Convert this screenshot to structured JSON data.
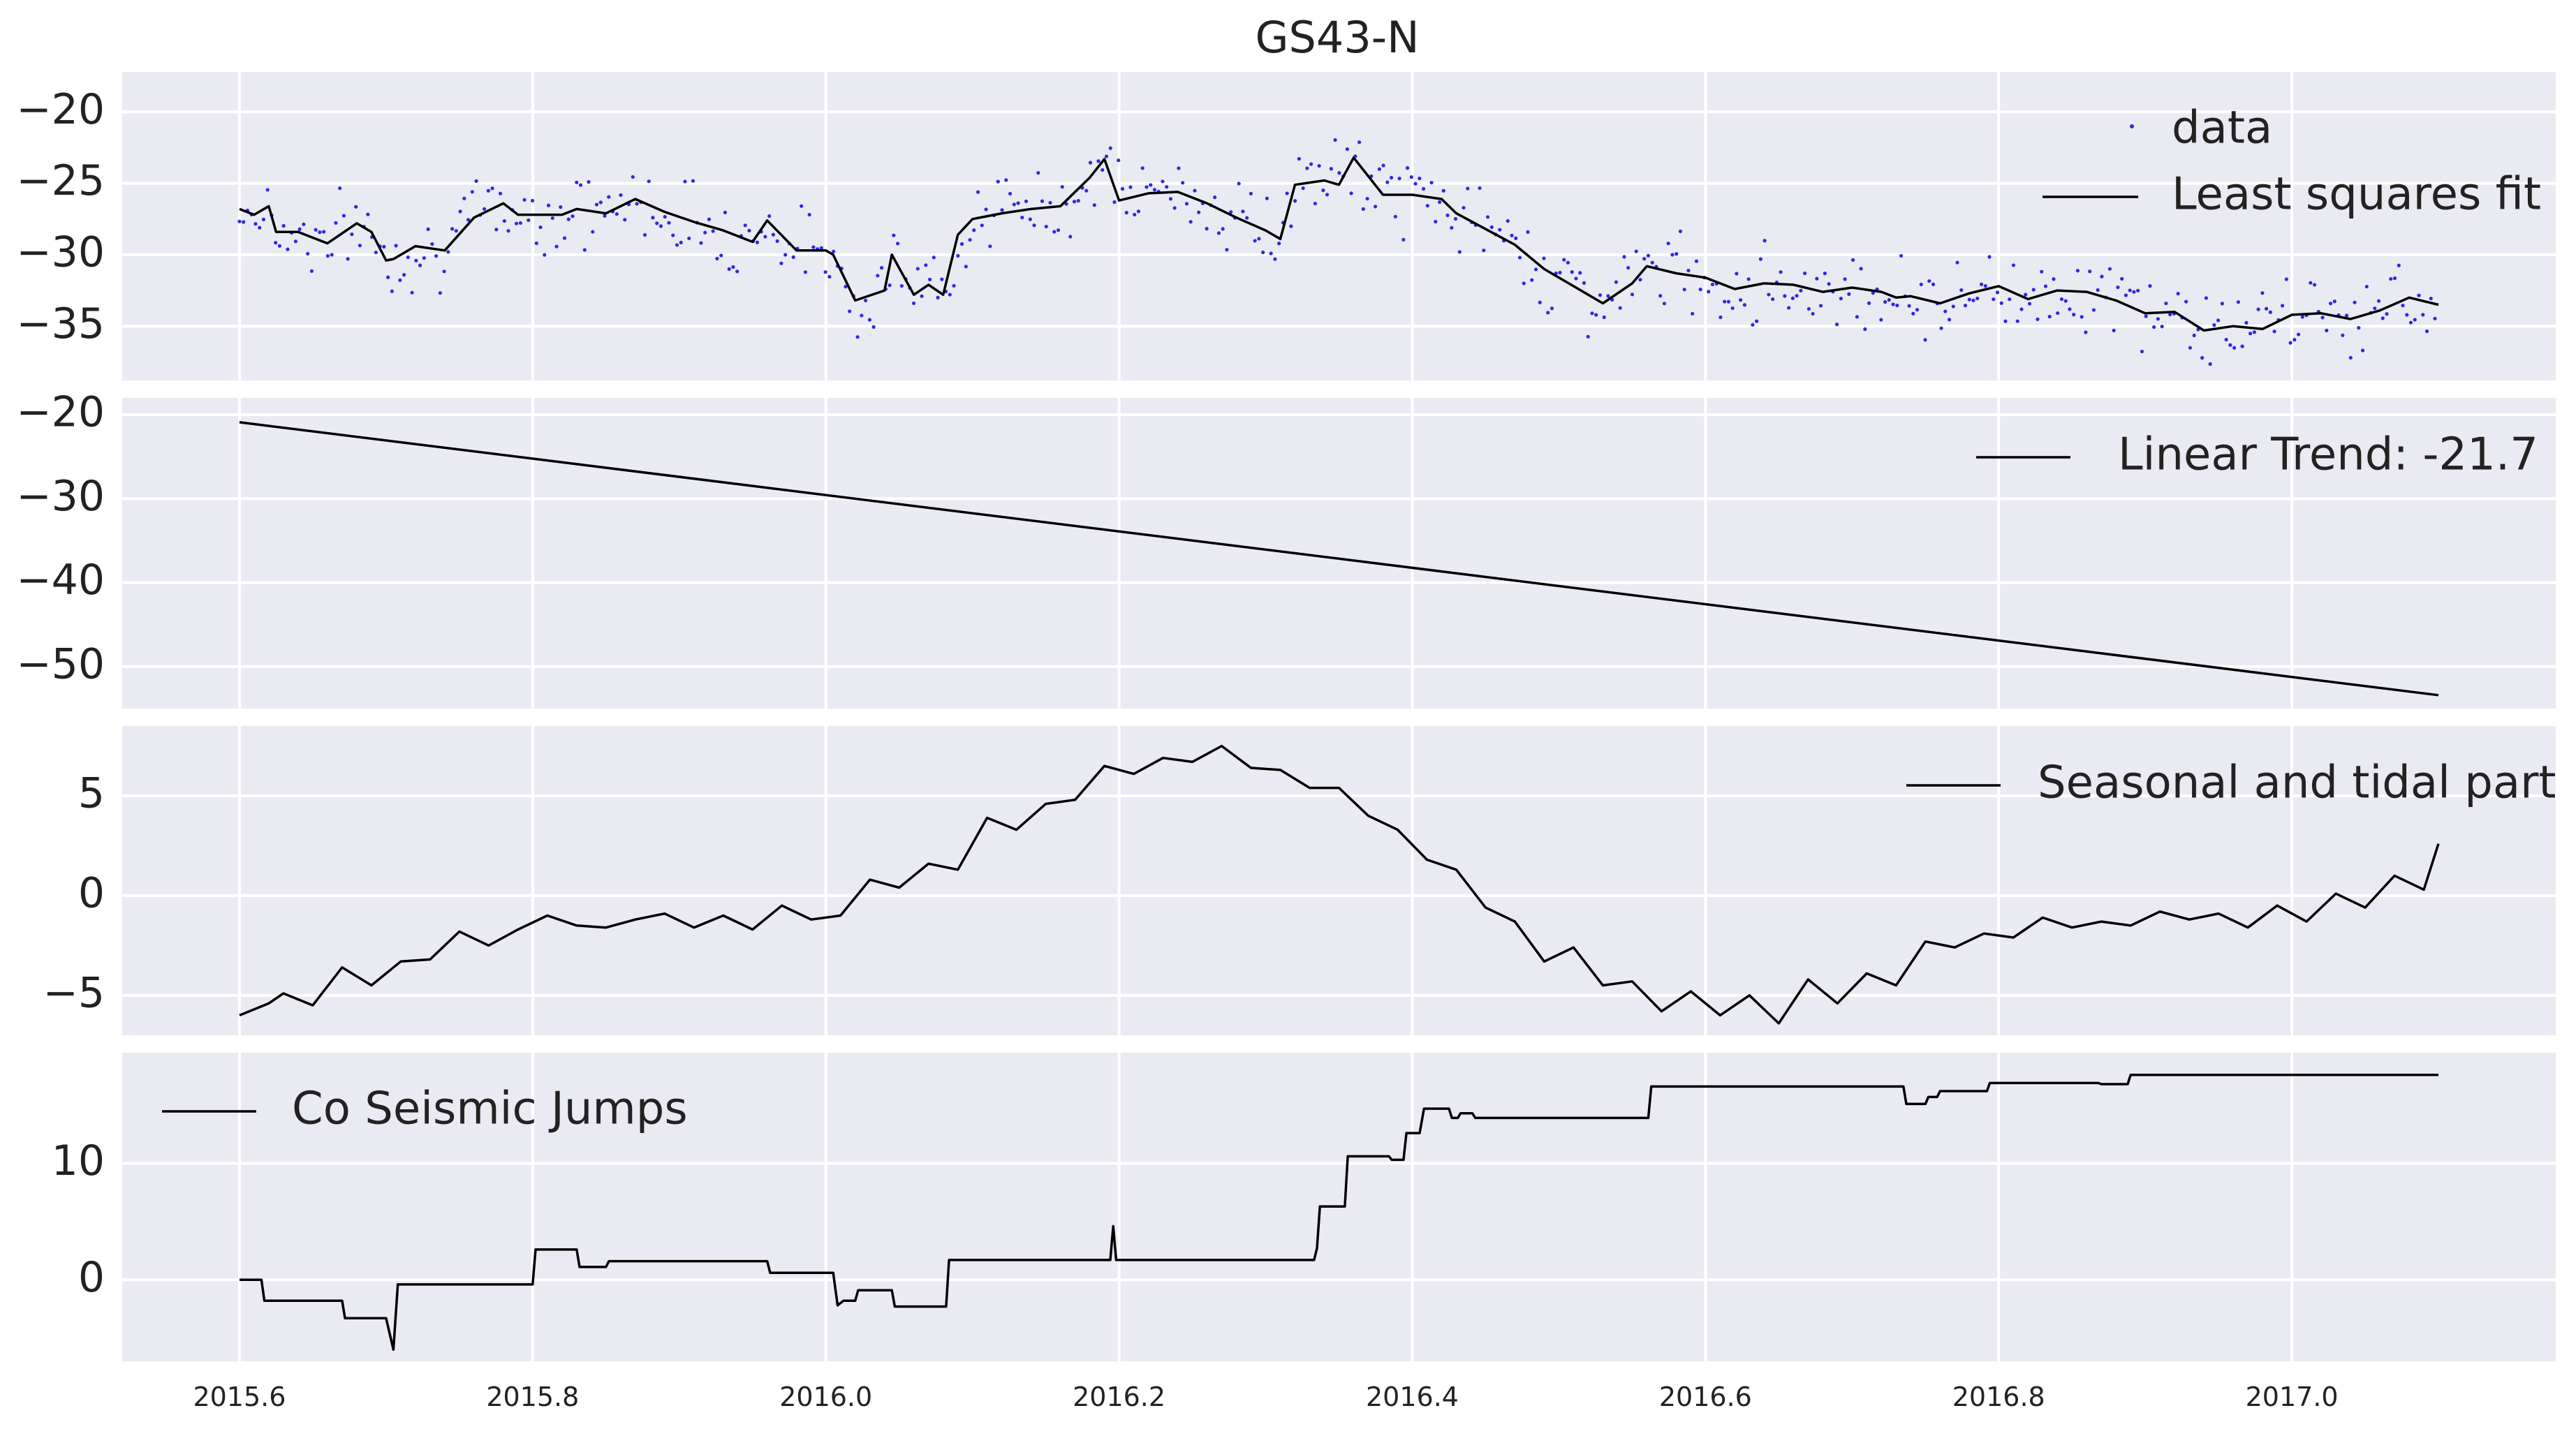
{
  "figure": {
    "title": "GS43-N",
    "background": "#eaeaf2",
    "line_color": "#000000",
    "data_color": "#2a2ae0"
  },
  "chart_data": [
    {
      "type": "scatter+line",
      "panel": "observations",
      "xlim": [
        2015.52,
        2017.18
      ],
      "ylim": [
        -38.8,
        -17.2
      ],
      "yticks": [
        -20,
        -25,
        -30,
        -35
      ],
      "legend": {
        "placement": "top-right",
        "entries": [
          "data",
          "Least squares fit"
        ]
      },
      "series": [
        {
          "name": "data",
          "kind": "points",
          "values_note": "daily observations"
        },
        {
          "name": "Least squares fit",
          "kind": "line",
          "x": [
            2015.6,
            2015.61,
            2015.62,
            2015.625,
            2015.64,
            2015.66,
            2015.68,
            2015.69,
            2015.7,
            2015.705,
            2015.72,
            2015.74,
            2015.76,
            2015.78,
            2015.79,
            2015.8,
            2015.82,
            2015.83,
            2015.85,
            2015.87,
            2015.89,
            2015.91,
            2015.93,
            2015.95,
            2015.96,
            2015.98,
            2016.0,
            2016.005,
            2016.02,
            2016.04,
            2016.045,
            2016.06,
            2016.07,
            2016.08,
            2016.09,
            2016.1,
            2016.12,
            2016.14,
            2016.16,
            2016.18,
            2016.19,
            2016.2,
            2016.22,
            2016.24,
            2016.26,
            2016.28,
            2016.3,
            2016.31,
            2016.32,
            2016.34,
            2016.35,
            2016.36,
            2016.38,
            2016.4,
            2016.42,
            2016.43,
            2016.45,
            2016.47,
            2016.49,
            2016.51,
            2016.53,
            2016.55,
            2016.56,
            2016.58,
            2016.6,
            2016.62,
            2016.64,
            2016.66,
            2016.68,
            2016.7,
            2016.72,
            2016.73,
            2016.74,
            2016.76,
            2016.78,
            2016.8,
            2016.82,
            2016.84,
            2016.86,
            2016.88,
            2016.9,
            2016.92,
            2016.94,
            2016.96,
            2016.98,
            2017.0,
            2017.02,
            2017.04,
            2017.06,
            2017.08,
            2017.1
          ],
          "y": [
            -26.8,
            -27.2,
            -26.6,
            -28.4,
            -28.4,
            -29.2,
            -27.8,
            -28.4,
            -30.4,
            -30.3,
            -29.4,
            -29.7,
            -27.4,
            -26.4,
            -27.2,
            -27.2,
            -27.2,
            -26.8,
            -27.1,
            -26.1,
            -27.0,
            -27.7,
            -28.3,
            -29.1,
            -27.6,
            -29.7,
            -29.7,
            -30.0,
            -33.2,
            -32.5,
            -30.0,
            -32.8,
            -32.1,
            -32.8,
            -28.6,
            -27.5,
            -27.1,
            -26.8,
            -26.6,
            -24.6,
            -23.3,
            -26.2,
            -25.7,
            -25.6,
            -26.4,
            -27.4,
            -28.3,
            -28.9,
            -25.1,
            -24.8,
            -25.1,
            -23.2,
            -25.8,
            -25.8,
            -26.1,
            -27.1,
            -28.2,
            -29.3,
            -31.0,
            -32.2,
            -33.4,
            -32.0,
            -30.8,
            -31.3,
            -31.6,
            -32.4,
            -32.0,
            -32.1,
            -32.6,
            -32.3,
            -32.6,
            -33.0,
            -32.9,
            -33.4,
            -32.7,
            -32.2,
            -33.1,
            -32.5,
            -32.6,
            -33.2,
            -34.1,
            -34.0,
            -35.3,
            -35.0,
            -35.2,
            -34.2,
            -34.1,
            -34.5,
            -33.9,
            -33.0,
            -33.5
          ]
        }
      ]
    },
    {
      "type": "line",
      "panel": "linear-trend",
      "xlim": [
        2015.52,
        2017.18
      ],
      "ylim": [
        -55.0,
        -18.0
      ],
      "yticks": [
        -20,
        -30,
        -40,
        -50
      ],
      "legend": {
        "placement": "top-right",
        "entries": [
          "Linear Trend: -21.7"
        ]
      },
      "series": [
        {
          "name": "Linear Trend: -21.7",
          "x": [
            2015.6,
            2017.1
          ],
          "y": [
            -20.9,
            -53.4
          ]
        }
      ]
    },
    {
      "type": "line",
      "panel": "seasonal",
      "xlim": [
        2015.52,
        2017.18
      ],
      "ylim": [
        -7.0,
        8.5
      ],
      "yticks": [
        5,
        0,
        -5
      ],
      "legend": {
        "placement": "top-right",
        "entries": [
          "Seasonal and tidal part"
        ]
      },
      "series": [
        {
          "name": "Seasonal and tidal part",
          "x": [
            2015.6,
            2015.62,
            2015.63,
            2015.65,
            2015.67,
            2015.69,
            2015.71,
            2015.73,
            2015.75,
            2015.77,
            2015.79,
            2015.81,
            2015.83,
            2015.85,
            2015.87,
            2015.89,
            2015.91,
            2015.93,
            2015.95,
            2015.97,
            2015.99,
            2016.01,
            2016.03,
            2016.05,
            2016.07,
            2016.09,
            2016.11,
            2016.13,
            2016.15,
            2016.17,
            2016.19,
            2016.21,
            2016.23,
            2016.25,
            2016.27,
            2016.29,
            2016.31,
            2016.33,
            2016.35,
            2016.37,
            2016.39,
            2016.41,
            2016.43,
            2016.45,
            2016.47,
            2016.49,
            2016.51,
            2016.53,
            2016.55,
            2016.57,
            2016.59,
            2016.61,
            2016.63,
            2016.65,
            2016.67,
            2016.69,
            2016.71,
            2016.73,
            2016.75,
            2016.77,
            2016.79,
            2016.81,
            2016.83,
            2016.85,
            2016.87,
            2016.89,
            2016.91,
            2016.93,
            2016.95,
            2016.97,
            2016.99,
            2017.01,
            2017.03,
            2017.05,
            2017.07,
            2017.09,
            2017.1
          ],
          "y": [
            -6.0,
            -5.4,
            -4.9,
            -5.5,
            -3.6,
            -4.5,
            -3.3,
            -3.2,
            -1.8,
            -2.5,
            -1.7,
            -1.0,
            -1.5,
            -1.6,
            -1.2,
            -0.9,
            -1.6,
            -1.0,
            -1.7,
            -0.5,
            -1.2,
            -1.0,
            0.8,
            0.4,
            1.6,
            1.3,
            3.9,
            3.3,
            4.6,
            4.8,
            6.5,
            6.1,
            6.9,
            6.7,
            7.5,
            6.4,
            6.3,
            5.4,
            5.4,
            4.0,
            3.3,
            1.8,
            1.3,
            -0.6,
            -1.3,
            -3.3,
            -2.6,
            -4.5,
            -4.3,
            -5.8,
            -4.8,
            -6.0,
            -5.0,
            -6.4,
            -4.2,
            -5.4,
            -3.9,
            -4.5,
            -2.3,
            -2.6,
            -1.9,
            -2.1,
            -1.1,
            -1.6,
            -1.3,
            -1.5,
            -0.8,
            -1.2,
            -0.9,
            -1.6,
            -0.5,
            -1.3,
            0.1,
            -0.6,
            1.0,
            0.3,
            2.6
          ]
        }
      ]
    },
    {
      "type": "line",
      "panel": "coseismic",
      "xlim": [
        2015.52,
        2017.18
      ],
      "ylim": [
        -7.0,
        19.5
      ],
      "yticks": [
        10,
        0
      ],
      "legend": {
        "placement": "top-left",
        "entries": [
          "Co Seismic Jumps"
        ]
      },
      "series": [
        {
          "name": "Co Seismic Jumps",
          "x": [
            2015.6,
            2015.615,
            2015.617,
            2015.67,
            2015.672,
            2015.7,
            2015.705,
            2015.708,
            2015.8,
            2015.802,
            2015.83,
            2015.832,
            2015.85,
            2015.852,
            2015.96,
            2015.962,
            2016.005,
            2016.008,
            2016.012,
            2016.02,
            2016.022,
            2016.045,
            2016.047,
            2016.07,
            2016.082,
            2016.084,
            2016.194,
            2016.196,
            2016.198,
            2016.2,
            2016.333,
            2016.335,
            2016.337,
            2016.354,
            2016.356,
            2016.384,
            2016.386,
            2016.394,
            2016.396,
            2016.405,
            2016.408,
            2016.425,
            2016.427,
            2016.431,
            2016.433,
            2016.441,
            2016.443,
            2016.451,
            2016.453,
            2016.561,
            2016.563,
            2016.735,
            2016.737,
            2016.75,
            2016.752,
            2016.758,
            2016.76,
            2016.792,
            2016.794,
            2016.868,
            2016.87,
            2016.888,
            2016.89,
            2016.98,
            2016.982,
            2017.1
          ],
          "y": [
            0.0,
            0.0,
            -1.8,
            -1.8,
            -3.3,
            -3.3,
            -6.0,
            -0.4,
            -0.4,
            2.6,
            2.6,
            1.1,
            1.1,
            1.6,
            1.6,
            0.6,
            0.6,
            -2.2,
            -1.8,
            -1.8,
            -0.9,
            -0.9,
            -2.3,
            -2.3,
            -2.3,
            1.7,
            1.7,
            4.6,
            1.7,
            1.7,
            1.7,
            2.7,
            6.3,
            6.3,
            10.6,
            10.6,
            10.3,
            10.3,
            12.6,
            12.6,
            14.7,
            14.7,
            13.9,
            13.9,
            14.3,
            14.3,
            13.9,
            13.9,
            13.9,
            13.9,
            16.6,
            16.6,
            15.1,
            15.1,
            15.7,
            15.7,
            16.2,
            16.2,
            16.9,
            16.9,
            16.8,
            16.8,
            17.6,
            17.6,
            17.6,
            17.6
          ]
        }
      ]
    }
  ],
  "x_axis": {
    "ticks": [
      2015.6,
      2015.8,
      2016.0,
      2016.2,
      2016.4,
      2016.6,
      2016.8,
      2017.0
    ],
    "tick_labels": [
      "2015.6",
      "2015.8",
      "2016.0",
      "2016.2",
      "2016.4",
      "2016.6",
      "2016.8",
      "2017.0"
    ]
  }
}
